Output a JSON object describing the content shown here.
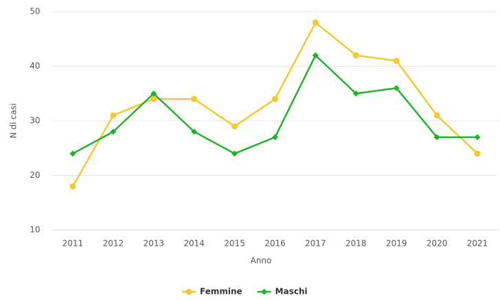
{
  "chart_data": {
    "type": "line",
    "categories": [
      "2011",
      "2012",
      "2013",
      "2014",
      "2015",
      "2016",
      "2017",
      "2018",
      "2019",
      "2020",
      "2021"
    ],
    "series": [
      {
        "name": "Femmine",
        "color": "#f5c730",
        "marker": "circle",
        "values": [
          18,
          31,
          34,
          34,
          29,
          34,
          48,
          42,
          41,
          31,
          24
        ]
      },
      {
        "name": "Maschi",
        "color": "#22b32a",
        "marker": "diamond",
        "values": [
          24,
          28,
          35,
          28,
          24,
          27,
          42,
          35,
          36,
          27,
          27
        ]
      }
    ],
    "ylim": [
      10,
      50
    ],
    "yticks": [
      10,
      20,
      30,
      40,
      50
    ],
    "grid": true,
    "x_label": "Anno",
    "y_label": "N di casi",
    "legend": "bottom"
  }
}
